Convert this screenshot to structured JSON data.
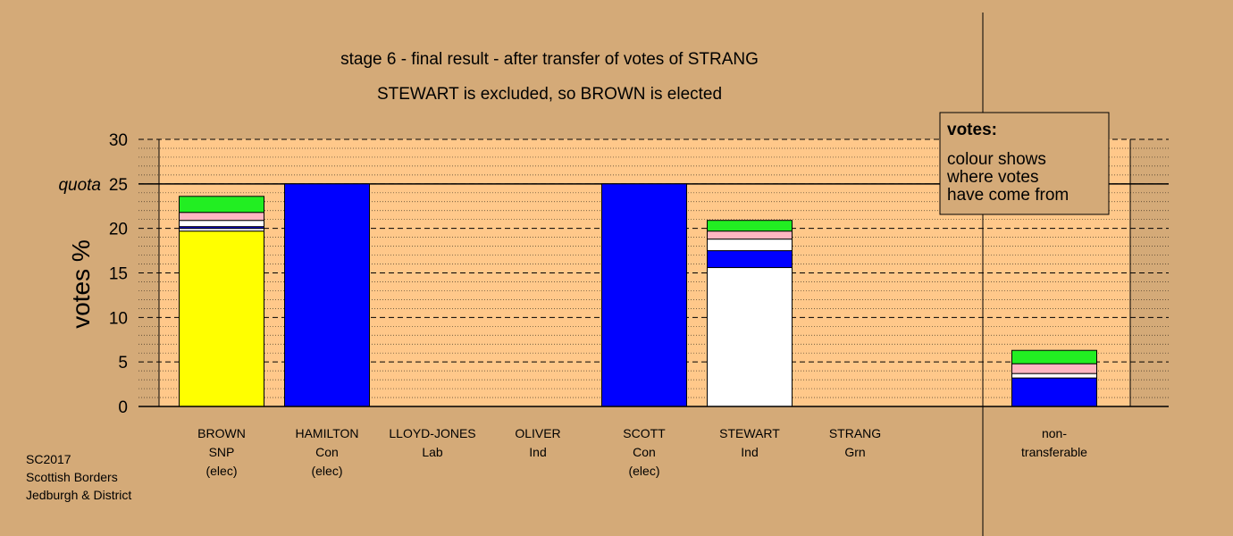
{
  "chart_data": {
    "type": "bar",
    "stacked": true,
    "title": "stage 6 - final result - after transfer of votes of STRANG",
    "subtitle": "STEWART is excluded, so BROWN is elected",
    "ylabel": "votes %",
    "ylim": [
      0,
      30
    ],
    "yticks": [
      "0",
      "5",
      "10",
      "15",
      "20",
      "25",
      "30"
    ],
    "quota": {
      "value": 25,
      "label": "quota"
    },
    "grid": true,
    "legend": {
      "heading": "votes:",
      "lines": [
        "colour shows",
        "where votes",
        "have come from"
      ],
      "placement": "top-right"
    },
    "categories": [
      {
        "lines": [
          "BROWN",
          "SNP",
          "(elec)"
        ]
      },
      {
        "lines": [
          "HAMILTON",
          "Con",
          "(elec)"
        ]
      },
      {
        "lines": [
          "LLOYD-JONES",
          "Lab"
        ]
      },
      {
        "lines": [
          "OLIVER",
          "Ind"
        ]
      },
      {
        "lines": [
          "SCOTT",
          "Con",
          "(elec)"
        ]
      },
      {
        "lines": [
          "STEWART",
          "Ind"
        ]
      },
      {
        "lines": [
          "STRANG",
          "Grn"
        ]
      },
      {
        "lines": [
          "non-",
          "transferable"
        ]
      }
    ],
    "bars": [
      [
        {
          "color": "#ffff00",
          "value": 19.7
        },
        {
          "color": "#ffffff",
          "value": 0.3
        },
        {
          "color": "#0000ff",
          "value": 0.2
        },
        {
          "color": "#ffffff",
          "value": 0.7
        },
        {
          "color": "#ffb6c1",
          "value": 0.9
        },
        {
          "color": "#22ee22",
          "value": 1.8
        }
      ],
      [
        {
          "color": "#0000ff",
          "value": 25.0
        }
      ],
      [],
      [],
      [
        {
          "color": "#0000ff",
          "value": 25.0
        }
      ],
      [
        {
          "color": "#ffffff",
          "value": 15.6
        },
        {
          "color": "#0000ff",
          "value": 1.9
        },
        {
          "color": "#ffffff",
          "value": 1.3
        },
        {
          "color": "#ffb6c1",
          "value": 0.9
        },
        {
          "color": "#22ee22",
          "value": 1.2
        }
      ],
      [],
      [
        {
          "color": "#0000ff",
          "value": 3.2
        },
        {
          "color": "#ffffff",
          "value": 0.5
        },
        {
          "color": "#ffb6c1",
          "value": 1.1
        },
        {
          "color": "#22ee22",
          "value": 1.5
        }
      ]
    ]
  },
  "footer": [
    "SC2017",
    "Scottish Borders",
    "Jedburgh & District"
  ]
}
